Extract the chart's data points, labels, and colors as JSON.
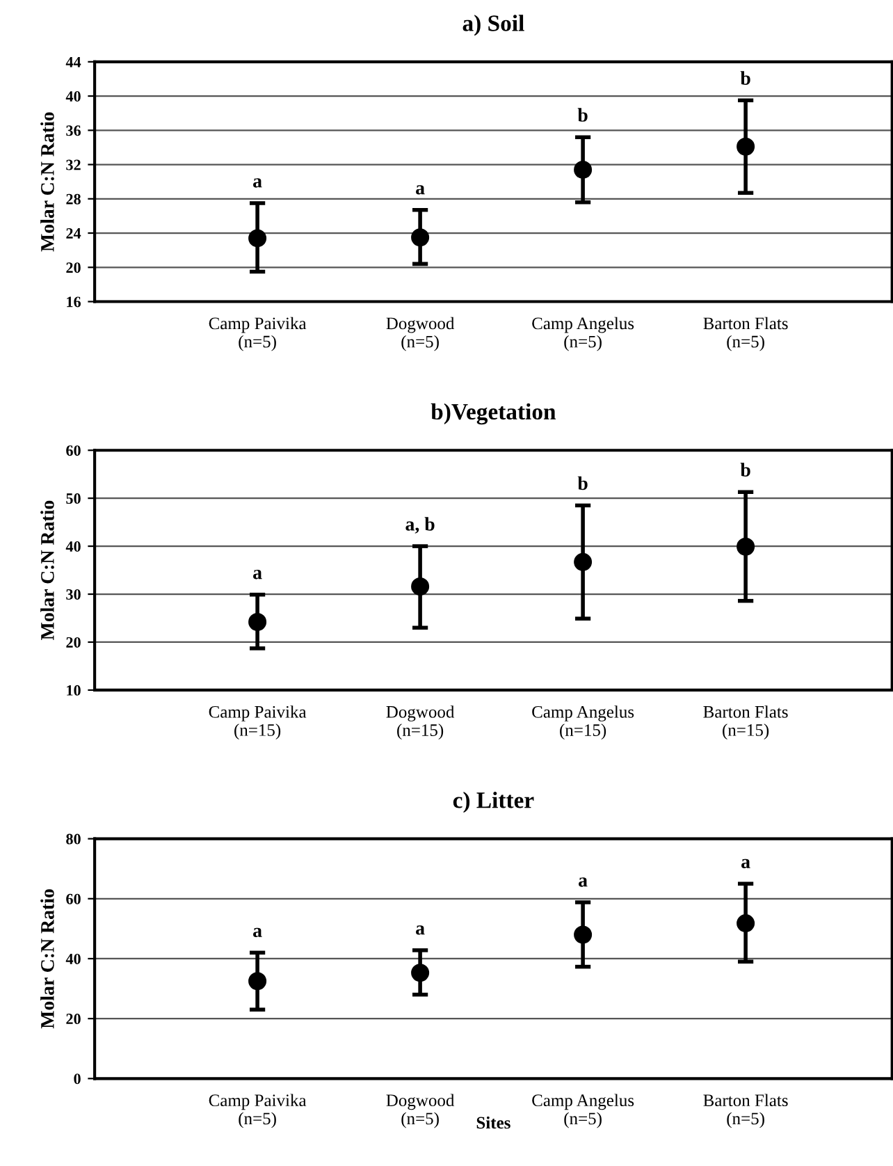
{
  "chart_data": [
    {
      "type": "scatter",
      "title": "a) Soil",
      "ylabel": "Molar C:N Ratio",
      "categories": [
        "Camp Paivika\n(n=5)",
        "Dogwood\n(n=5)",
        "Camp Angelus\n(n=5)",
        "Barton Flats\n(n=5)"
      ],
      "values": [
        23.4,
        23.5,
        31.4,
        34.1
      ],
      "errors": [
        [
          19.5,
          27.5
        ],
        [
          20.4,
          26.7
        ],
        [
          27.6,
          35.2
        ],
        [
          28.7,
          39.5
        ]
      ],
      "color": "#000000",
      "marker": "circle",
      "ylim": [
        16,
        44
      ],
      "yticks": [
        16,
        20,
        24,
        28,
        32,
        36,
        40,
        44
      ],
      "grid": "y",
      "annotations": [
        "a",
        "a",
        "b",
        "b"
      ]
    },
    {
      "type": "scatter",
      "title": "b)Vegetation",
      "ylabel": "Molar C:N Ratio",
      "categories": [
        "Camp Paivika\n(n=15)",
        "Dogwood\n(n=15)",
        "Camp Angelus\n(n=15)",
        "Barton Flats\n(n=15)"
      ],
      "values": [
        24.2,
        31.6,
        36.7,
        39.9
      ],
      "errors": [
        [
          18.7,
          29.9
        ],
        [
          23,
          40
        ],
        [
          24.9,
          48.5
        ],
        [
          28.6,
          51.3
        ]
      ],
      "color": "#000000",
      "marker": "circle",
      "ylim": [
        10,
        60
      ],
      "yticks": [
        10,
        20,
        30,
        40,
        50,
        60
      ],
      "grid": "y",
      "annotations": [
        "a",
        "a, b",
        "b",
        "b"
      ]
    },
    {
      "type": "scatter",
      "title": "c) Litter",
      "ylabel": "Molar C:N Ratio",
      "xlabel": "Sites",
      "categories": [
        "Camp Paivika\n(n=5)",
        "Dogwood\n(n=5)",
        "Camp Angelus\n(n=5)",
        "Barton Flats\n(n=5)"
      ],
      "values": [
        32.5,
        35.3,
        48,
        51.8
      ],
      "errors": [
        [
          23,
          42
        ],
        [
          28,
          42.8
        ],
        [
          37.3,
          58.8
        ],
        [
          39,
          65
        ]
      ],
      "color": "#000000",
      "marker": "circle",
      "ylim": [
        0,
        80
      ],
      "yticks": [
        0,
        20,
        40,
        60,
        80
      ],
      "grid": "y",
      "annotations": [
        "a",
        "a",
        "a",
        "a"
      ]
    }
  ]
}
